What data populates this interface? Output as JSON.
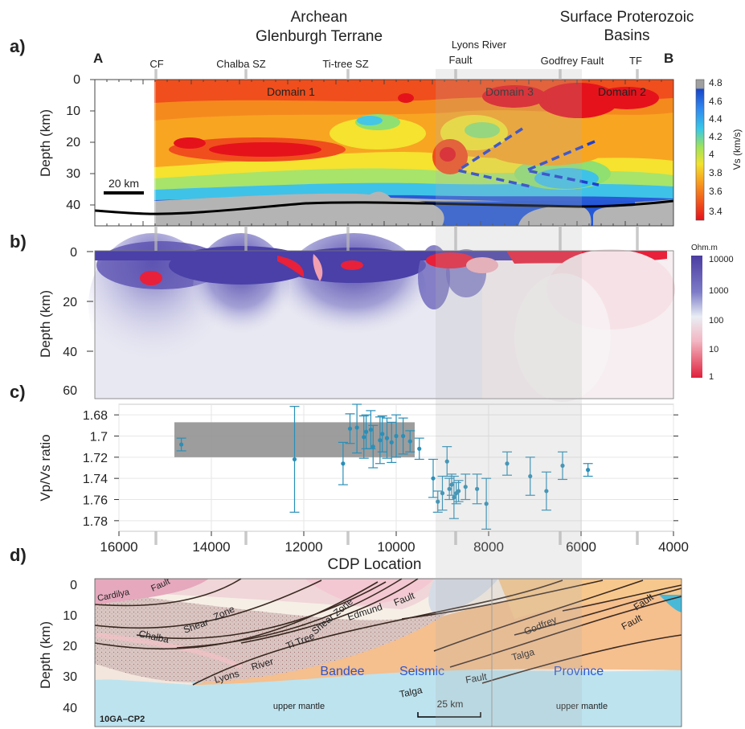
{
  "header": {
    "archean_line1": "Archean",
    "archean_line2": "Glenburgh Terrane",
    "surface_line1": "Surface Proterozoic",
    "surface_line2": "Basins"
  },
  "panel_a": {
    "letter": "a)",
    "end_left": "A",
    "end_right": "B",
    "faults": [
      "CF",
      "Chalba SZ",
      "Ti-tree SZ",
      "Godfrey Fault",
      "TF"
    ],
    "lyons_line1": "Lyons River",
    "lyons_line2": "Fault",
    "domains": [
      "Domain 1",
      "Domain 3",
      "Domain 2"
    ],
    "y_label": "Depth (km)",
    "y_ticks": [
      "0",
      "10",
      "20",
      "30",
      "40"
    ],
    "scale_label": "20 km",
    "colorbar": {
      "label": "Vs (km/s)",
      "ticks": [
        "4.8",
        "4.6",
        "4.4",
        "4.2",
        "4",
        "3.8",
        "3.6",
        "3.4"
      ]
    }
  },
  "panel_b": {
    "letter": "b)",
    "y_label": "Depth (km)",
    "y_ticks": [
      "0",
      "20",
      "40",
      "60"
    ],
    "colorbar": {
      "label": "Ohm.m",
      "ticks": [
        "10000",
        "1000",
        "100",
        "10",
        "1"
      ]
    }
  },
  "panel_c": {
    "letter": "c)",
    "y_label": "Vp/Vs ratio",
    "y_ticks": [
      "1.68",
      "1.7",
      "1.72",
      "1.74",
      "1.76",
      "1.78"
    ],
    "x_ticks": [
      "16000",
      "14000",
      "12000",
      "10000",
      "8000",
      "6000",
      "4000"
    ],
    "x_label": "CDP Location"
  },
  "panel_d": {
    "letter": "d)",
    "y_label": "Depth (km)",
    "y_ticks": [
      "0",
      "10",
      "20",
      "30",
      "40"
    ],
    "labels": [
      "Cardilya",
      "Fault",
      "Chalba",
      "Shear",
      "Zone",
      "Ti Tree",
      "Shear Zone",
      "Edmund",
      "Fault",
      "Lyons",
      "River",
      "Godfrey",
      "Fault",
      "Talga",
      "Fault",
      "Talga",
      "Fault",
      "upper mantle",
      "upper mantle"
    ],
    "province_words": [
      "Bandee",
      "Seismic",
      "Province"
    ],
    "scale_label": "25 km",
    "section_id": "10GA–CP2"
  },
  "chart_data": {
    "type": "scatter",
    "title": "",
    "xlabel": "CDP Location",
    "ylabel": "Vp/Vs ratio",
    "xlim": [
      16000,
      4000
    ],
    "ylim": [
      1.79,
      1.67
    ],
    "grid": true,
    "series": [
      {
        "x": [
          14650,
          12200,
          11150,
          11000,
          10850,
          10700,
          10650,
          10550,
          10500,
          10350,
          10300,
          10200,
          10100,
          10000,
          9850,
          9700,
          9500,
          9200,
          9100,
          9000,
          8900,
          8850,
          8800,
          8750,
          8700,
          8650,
          8500,
          8250,
          8050,
          7600,
          7100,
          6750,
          6400,
          5850
        ],
        "y": [
          1.708,
          1.722,
          1.726,
          1.693,
          1.692,
          1.701,
          1.696,
          1.694,
          1.71,
          1.704,
          1.698,
          1.702,
          1.706,
          1.7,
          1.7,
          1.705,
          1.712,
          1.74,
          1.762,
          1.754,
          1.724,
          1.75,
          1.746,
          1.758,
          1.754,
          1.752,
          1.748,
          1.75,
          1.764,
          1.726,
          1.738,
          1.752,
          1.728,
          1.732
        ],
        "err": [
          0.006,
          0.05,
          0.02,
          0.014,
          0.024,
          0.02,
          0.016,
          0.018,
          0.02,
          0.022,
          0.017,
          0.019,
          0.019,
          0.02,
          0.017,
          0.01,
          0.01,
          0.018,
          0.01,
          0.016,
          0.014,
          0.01,
          0.01,
          0.02,
          0.01,
          0.01,
          0.012,
          0.014,
          0.024,
          0.011,
          0.018,
          0.018,
          0.013,
          0.006
        ]
      }
    ],
    "shaded_box": {
      "x": [
        14800,
        9600
      ],
      "y": [
        1.687,
        1.72
      ]
    }
  }
}
